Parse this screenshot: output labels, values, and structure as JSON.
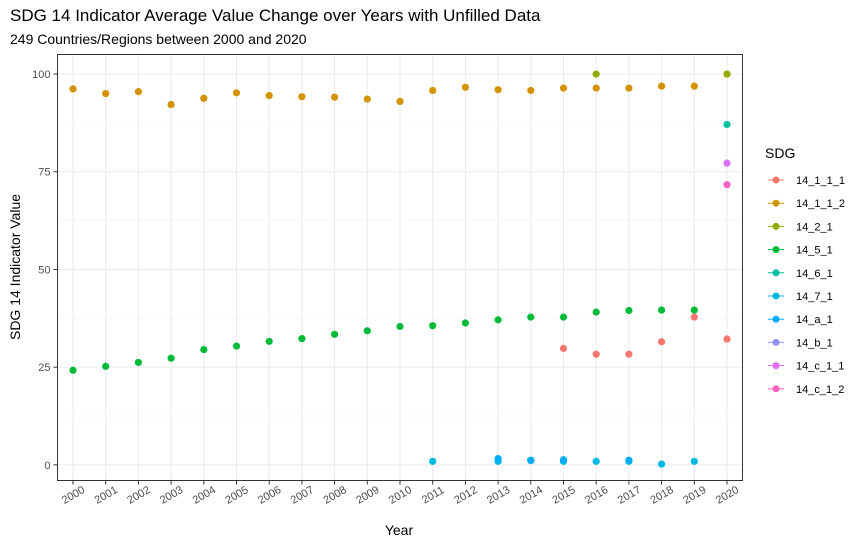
{
  "chart_data": {
    "type": "scatter",
    "title": "SDG 14 Indicator Average Value Change over Years with Unfilled Data",
    "subtitle": "249 Countries/Regions between 2000 and 2020",
    "xlabel": "Year",
    "ylabel": "SDG 14 Indicator Value",
    "x_ticks": [
      "2000",
      "2001",
      "2002",
      "2003",
      "2004",
      "2005",
      "2006",
      "2007",
      "2008",
      "2009",
      "2010",
      "2011",
      "2012",
      "2013",
      "2014",
      "2015",
      "2016",
      "2017",
      "2018",
      "2019",
      "2020"
    ],
    "y_ticks": [
      0,
      25,
      50,
      75,
      100
    ],
    "ylim": [
      -4,
      105
    ],
    "grid": true,
    "legend": {
      "title": "SDG",
      "placement": "right"
    },
    "series": [
      {
        "name": "14_1_1_1",
        "color": "#F8766D",
        "points": [
          [
            2015,
            29.8
          ],
          [
            2016,
            28.3
          ],
          [
            2017,
            28.3
          ],
          [
            2018,
            31.5
          ],
          [
            2019,
            37.8
          ],
          [
            2020,
            32.2
          ]
        ]
      },
      {
        "name": "14_1_1_2",
        "color": "#D39200",
        "points": [
          [
            2000,
            96.2
          ],
          [
            2001,
            95.0
          ],
          [
            2002,
            95.5
          ],
          [
            2003,
            92.2
          ],
          [
            2004,
            93.8
          ],
          [
            2005,
            95.2
          ],
          [
            2006,
            94.5
          ],
          [
            2007,
            94.2
          ],
          [
            2008,
            94.1
          ],
          [
            2009,
            93.6
          ],
          [
            2010,
            93.0
          ],
          [
            2011,
            95.8
          ],
          [
            2012,
            96.6
          ],
          [
            2013,
            96.0
          ],
          [
            2014,
            95.8
          ],
          [
            2015,
            96.4
          ],
          [
            2016,
            96.4
          ],
          [
            2017,
            96.4
          ],
          [
            2018,
            96.9
          ],
          [
            2019,
            96.9
          ],
          [
            2020,
            100.0
          ]
        ]
      },
      {
        "name": "14_2_1",
        "color": "#93AA00",
        "points": [
          [
            2016,
            100.0
          ],
          [
            2020,
            100.0
          ]
        ]
      },
      {
        "name": "14_5_1",
        "color": "#00BA38",
        "points": [
          [
            2000,
            24.2
          ],
          [
            2001,
            25.2
          ],
          [
            2002,
            26.2
          ],
          [
            2003,
            27.3
          ],
          [
            2004,
            29.5
          ],
          [
            2005,
            30.4
          ],
          [
            2006,
            31.6
          ],
          [
            2007,
            32.3
          ],
          [
            2008,
            33.4
          ],
          [
            2009,
            34.3
          ],
          [
            2010,
            35.4
          ],
          [
            2011,
            35.6
          ],
          [
            2012,
            36.3
          ],
          [
            2013,
            37.1
          ],
          [
            2014,
            37.8
          ],
          [
            2015,
            37.8
          ],
          [
            2016,
            39.1
          ],
          [
            2017,
            39.5
          ],
          [
            2018,
            39.6
          ],
          [
            2019,
            39.6
          ]
        ]
      },
      {
        "name": "14_6_1",
        "color": "#00C19F",
        "points": [
          [
            2020,
            87.1
          ]
        ]
      },
      {
        "name": "14_7_1",
        "color": "#00B9E3",
        "points": [
          [
            2011,
            0.9
          ],
          [
            2013,
            0.9
          ],
          [
            2014,
            1.2
          ],
          [
            2015,
            0.9
          ],
          [
            2016,
            0.9
          ],
          [
            2017,
            0.9
          ],
          [
            2018,
            0.2
          ],
          [
            2019,
            0.9
          ]
        ]
      },
      {
        "name": "14_a_1",
        "color": "#00ADFA",
        "points": [
          [
            2013,
            1.6
          ],
          [
            2014,
            1.1
          ],
          [
            2015,
            1.3
          ],
          [
            2017,
            1.2
          ]
        ]
      },
      {
        "name": "14_b_1",
        "color": "#9590FF",
        "points": []
      },
      {
        "name": "14_c_1_1",
        "color": "#DB72FB",
        "points": [
          [
            2020,
            77.2
          ]
        ]
      },
      {
        "name": "14_c_1_2",
        "color": "#FF61C3",
        "points": [
          [
            2020,
            71.7
          ]
        ]
      }
    ]
  }
}
